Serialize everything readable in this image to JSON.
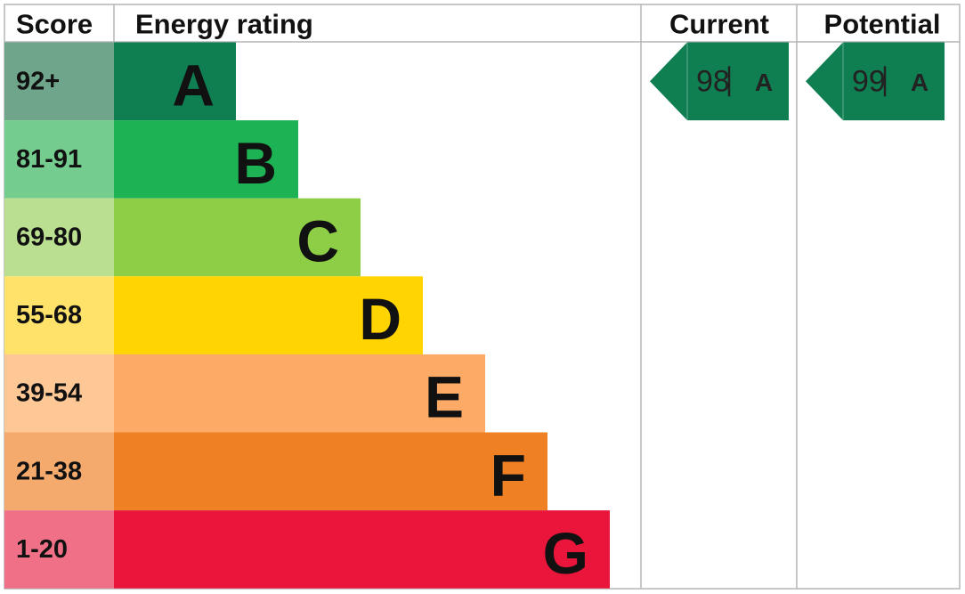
{
  "header": {
    "score": "Score",
    "rating": "Energy rating",
    "current": "Current",
    "potential": "Potential"
  },
  "bands": [
    {
      "score": "92+",
      "letter": "A"
    },
    {
      "score": "81-91",
      "letter": "B"
    },
    {
      "score": "69-80",
      "letter": "C"
    },
    {
      "score": "55-68",
      "letter": "D"
    },
    {
      "score": "39-54",
      "letter": "E"
    },
    {
      "score": "21-38",
      "letter": "F"
    },
    {
      "score": "1-20",
      "letter": "G"
    }
  ],
  "current": {
    "value": "98",
    "letter": "A"
  },
  "potential": {
    "value": "99",
    "letter": "A"
  }
}
